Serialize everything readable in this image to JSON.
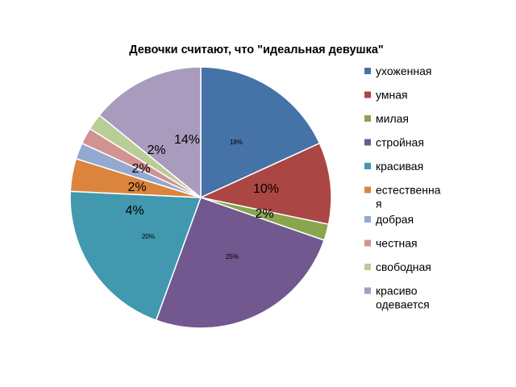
{
  "chart_data": {
    "type": "pie",
    "title": "Девочки  считают, что \"идеальная девушка\"",
    "slices": [
      {
        "name": "ухоженная",
        "value": 18,
        "label": "18%",
        "color": "#4572a7",
        "label_style": "small"
      },
      {
        "name": "умная",
        "value": 10,
        "label": "10%",
        "color": "#aa4643",
        "label_style": "big"
      },
      {
        "name": "милая",
        "value": 2,
        "label": "2%",
        "color": "#89a54e",
        "label_style": "big"
      },
      {
        "name": "стройная",
        "value": 25,
        "label": "25%",
        "color": "#71588f",
        "label_style": "small"
      },
      {
        "name": "красивая",
        "value": 20,
        "label": "20%",
        "color": "#4198af",
        "label_style": "small"
      },
      {
        "name": "естественная",
        "value": 4,
        "label": "4%",
        "color": "#db843d",
        "label_style": "big"
      },
      {
        "name": "добрая",
        "value": 2,
        "label": "2%",
        "color": "#93a9cf",
        "label_style": "big"
      },
      {
        "name": "честная",
        "value": 2,
        "label": "2%",
        "color": "#d19392",
        "label_style": "big"
      },
      {
        "name": "свободная",
        "value": 2,
        "label": "2%",
        "color": "#b9cd96",
        "label_style": "big"
      },
      {
        "name": "красиво одевается",
        "value": 14,
        "label": "14%",
        "color": "#a99bbd",
        "label_style": "big"
      }
    ],
    "legend": {
      "position": "right",
      "entries": [
        {
          "lines": [
            "ухоженная"
          ]
        },
        {
          "lines": [
            "умная"
          ]
        },
        {
          "lines": [
            "милая"
          ]
        },
        {
          "lines": [
            "стройная"
          ]
        },
        {
          "lines": [
            "красивая"
          ]
        },
        {
          "lines": [
            "естественна",
            "я"
          ]
        },
        {
          "lines": [
            "добрая"
          ]
        },
        {
          "lines": [
            "честная"
          ]
        },
        {
          "lines": [
            "свободная"
          ]
        },
        {
          "lines": [
            "красиво",
            "одевается"
          ]
        }
      ]
    }
  }
}
